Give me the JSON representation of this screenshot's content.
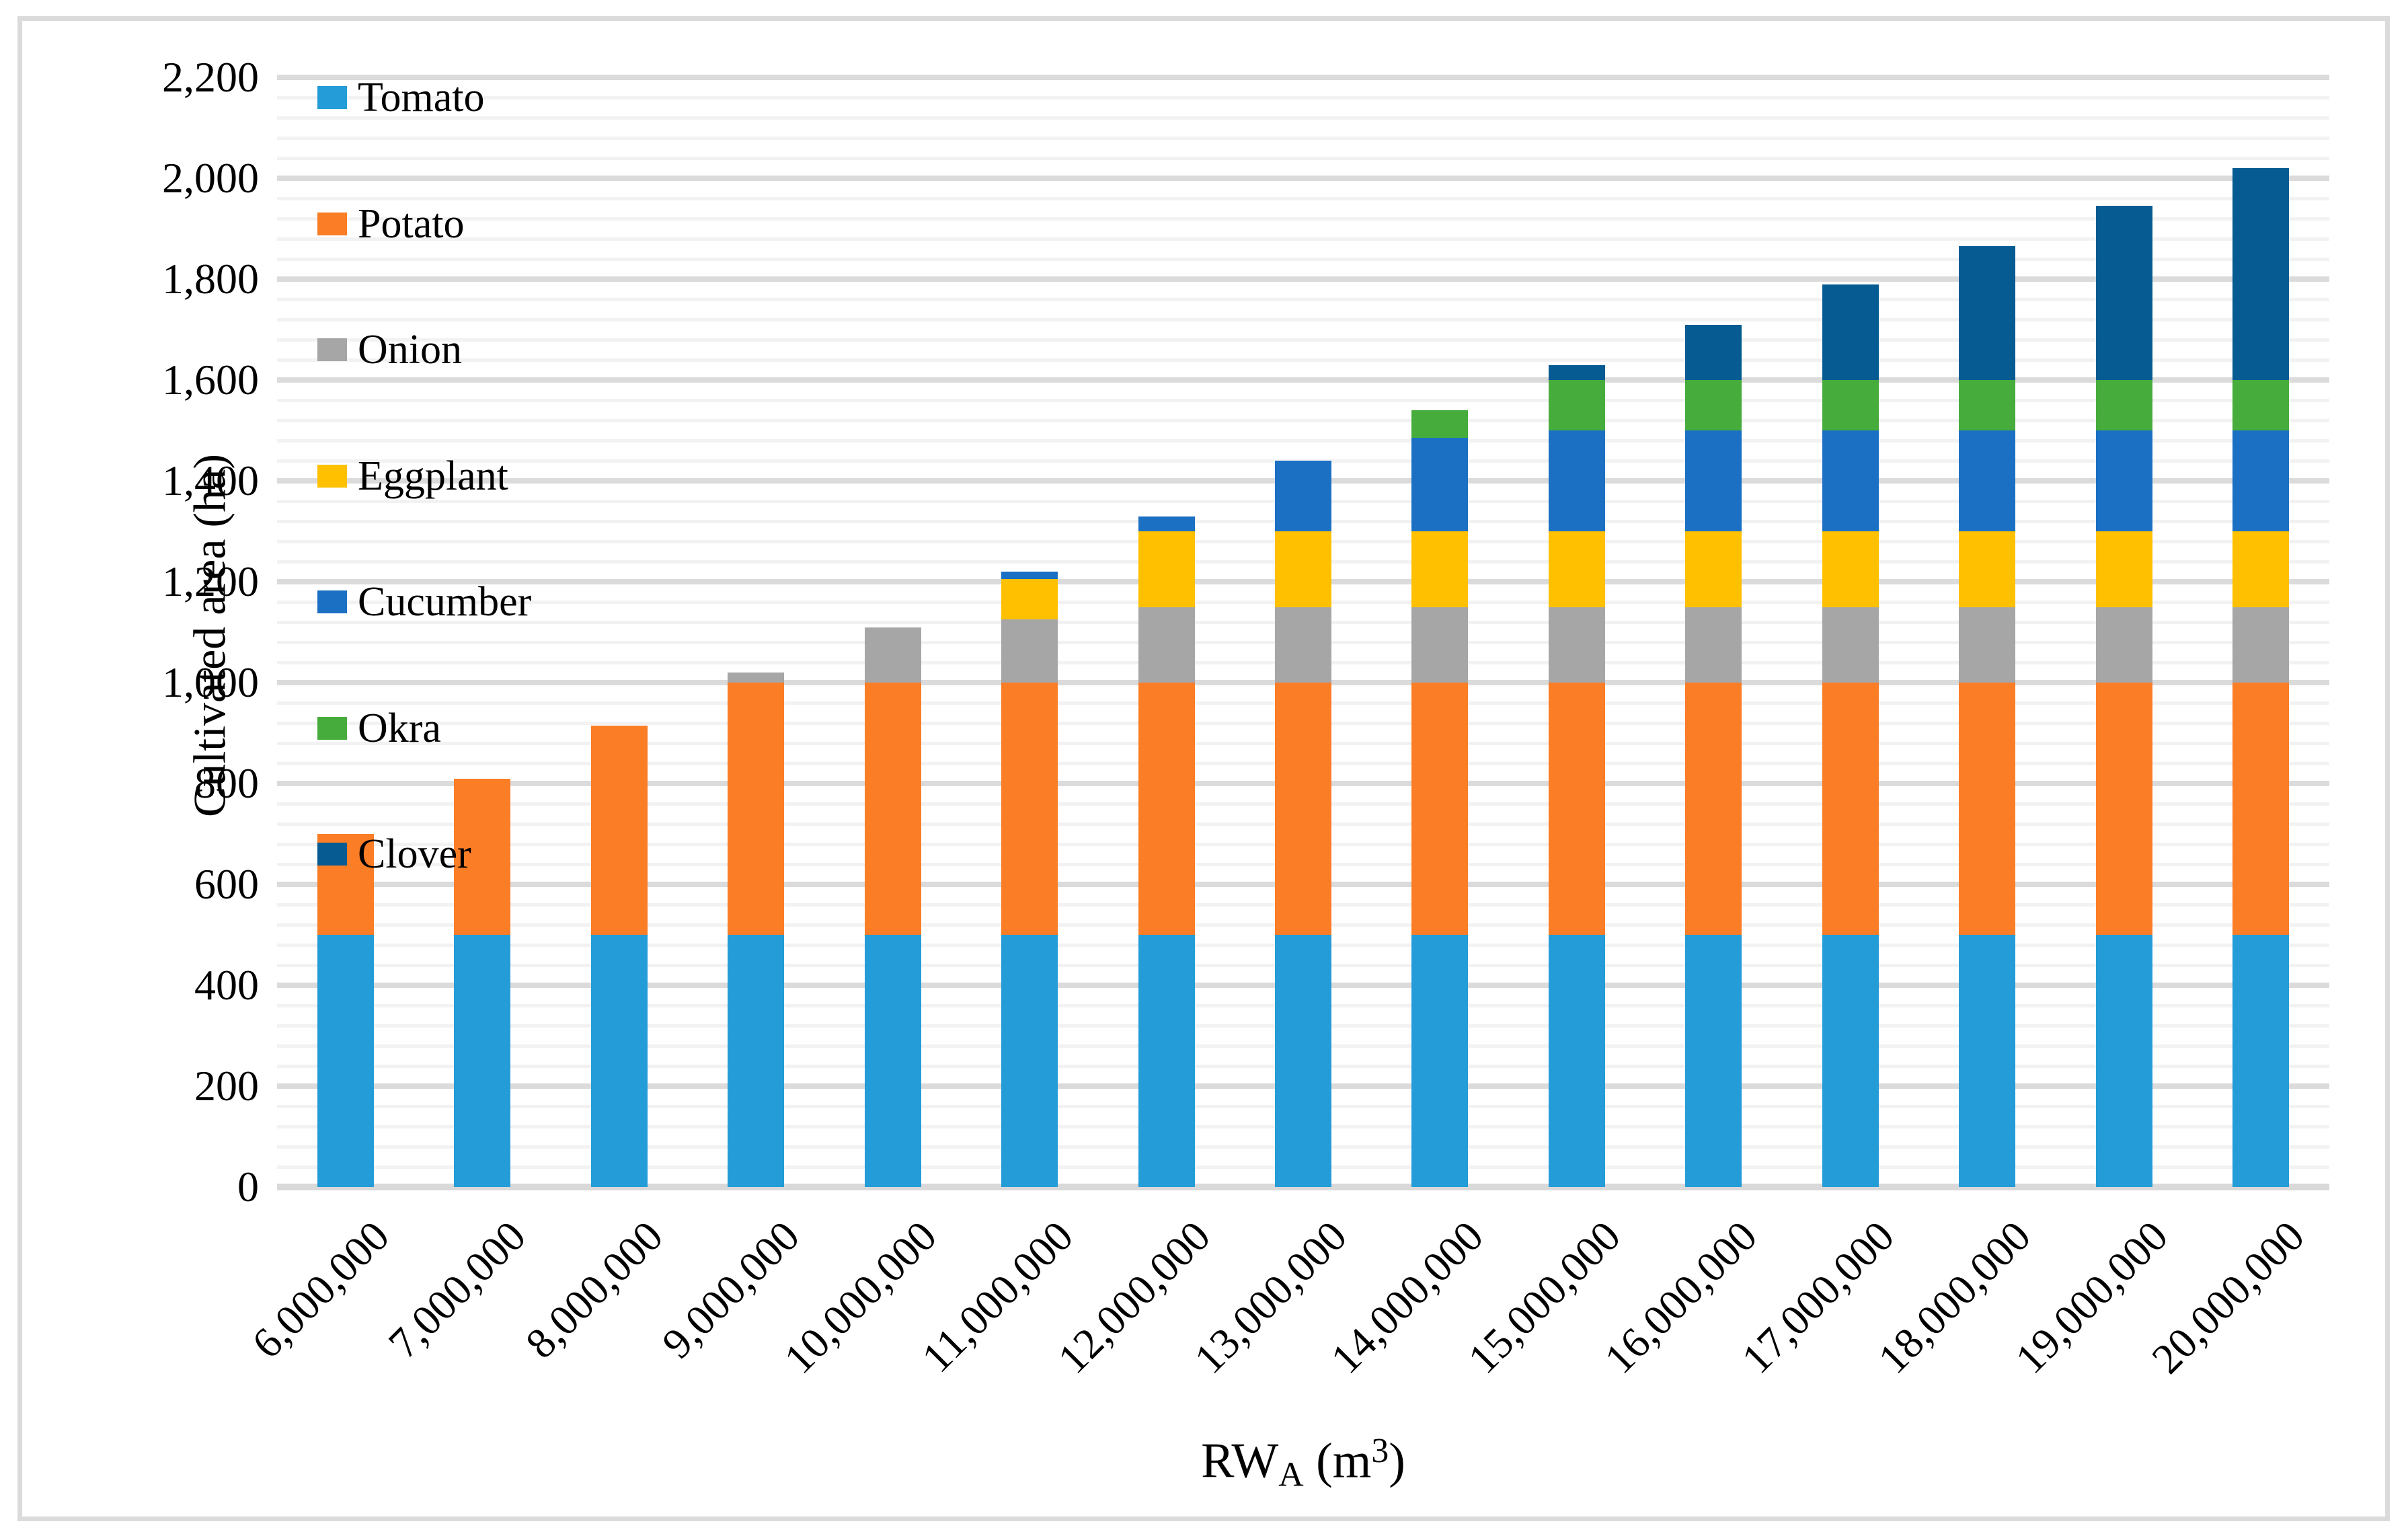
{
  "axes": {
    "y_title": "Cultivated area (ha)",
    "x_title_base": "RW",
    "x_title_sub": "A",
    "x_title_mid": " (m",
    "x_title_sup": "3",
    "x_title_end": ")"
  },
  "chart_data": {
    "type": "bar",
    "subtype": "stacked-vertical",
    "title": "",
    "xlabel": "RW_A (m^3)",
    "ylabel": "Cultivated area (ha)",
    "ylim": [
      0,
      2200
    ],
    "y_major_unit": 200,
    "y_minor_unit": 40,
    "grid": "horizontal major+minor",
    "legend_position": "inside-top-left",
    "categories": [
      "6,000,000",
      "7,000,000",
      "8,000,000",
      "9,000,000",
      "10,000,000",
      "11,000,000",
      "12,000,000",
      "13,000,000",
      "14,000,000",
      "15,000,000",
      "16,000,000",
      "17,000,000",
      "18,000,000",
      "19,000,000",
      "20,000,000"
    ],
    "series": [
      {
        "name": "Tomato",
        "color": "#239CD7",
        "values": [
          500,
          500,
          500,
          500,
          500,
          500,
          500,
          500,
          500,
          500,
          500,
          500,
          500,
          500,
          500
        ]
      },
      {
        "name": "Potato",
        "color": "#FB7D26",
        "values": [
          200,
          310,
          415,
          500,
          500,
          500,
          500,
          500,
          500,
          500,
          500,
          500,
          500,
          500,
          500
        ]
      },
      {
        "name": "Onion",
        "color": "#A6A6A6",
        "values": [
          0,
          0,
          0,
          20,
          110,
          125,
          150,
          150,
          150,
          150,
          150,
          150,
          150,
          150,
          150
        ]
      },
      {
        "name": "Eggplant",
        "color": "#FFC000",
        "values": [
          0,
          0,
          0,
          0,
          0,
          80,
          150,
          150,
          150,
          150,
          150,
          150,
          150,
          150,
          150
        ]
      },
      {
        "name": "Cucumber",
        "color": "#1B70C4",
        "values": [
          0,
          0,
          0,
          0,
          0,
          15,
          30,
          140,
          185,
          200,
          200,
          200,
          200,
          200,
          200
        ]
      },
      {
        "name": "Okra",
        "color": "#46AC3C",
        "values": [
          0,
          0,
          0,
          0,
          0,
          0,
          0,
          0,
          55,
          100,
          100,
          100,
          100,
          100,
          100
        ]
      },
      {
        "name": "Clover",
        "color": "#055B92",
        "values": [
          0,
          0,
          0,
          0,
          0,
          0,
          0,
          0,
          0,
          30,
          110,
          190,
          265,
          345,
          420
        ]
      }
    ],
    "totals": [
      700,
      810,
      915,
      1020,
      1110,
      1220,
      1330,
      1440,
      1540,
      1630,
      1710,
      1790,
      1865,
      1945,
      2020
    ]
  },
  "grid_colors": {
    "minor": "#F2F2F2",
    "major": "#DBDBDB",
    "axis_line": "#D9D9D9",
    "frame": "#DBDBDB"
  }
}
